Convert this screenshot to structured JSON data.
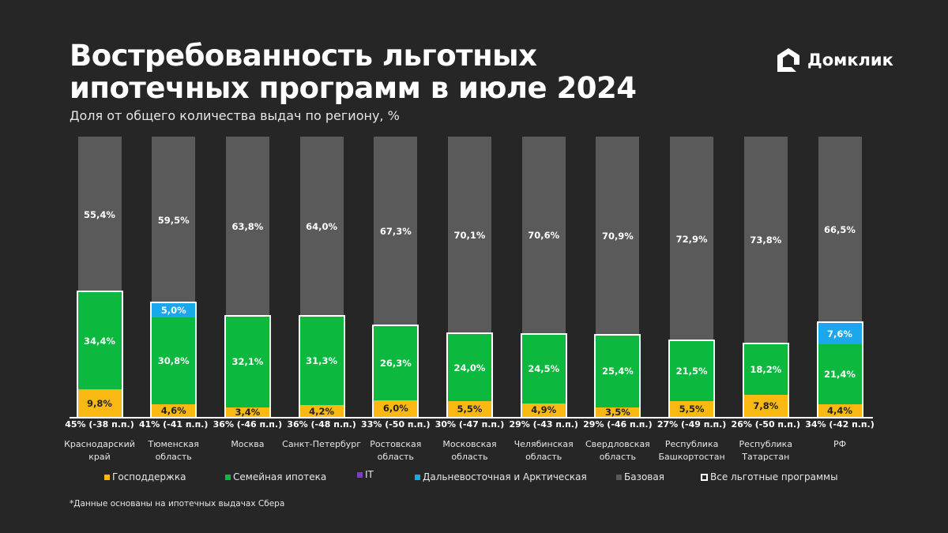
{
  "header": {
    "title_line1": "Востребованность льготных",
    "title_line2": "ипотечных программ в июле 2024",
    "subtitle": "Доля от общего количества выдач по региону, %",
    "logo_text": "Домклик"
  },
  "chart_data": {
    "type": "bar",
    "stacked": true,
    "title": "Востребованность льготных ипотечных программ в июле 2024",
    "ylabel": "Доля от общего количества выдач по региону, %",
    "ylim": [
      0,
      100
    ],
    "grid": false,
    "legend_position": "bottom",
    "categories": [
      "Краснодарский край",
      "Тюменская область",
      "Москва",
      "Санкт-Петербург",
      "Ростовская область",
      "Московская область",
      "Челябинская область",
      "Свердловская область",
      "Республика Башкортостан",
      "Республика Татарстан",
      "РФ"
    ],
    "series": [
      {
        "name": "Господдержка",
        "color": "#f9b912",
        "values": [
          9.8,
          4.6,
          3.4,
          4.2,
          6.0,
          5.5,
          4.9,
          3.5,
          5.5,
          7.8,
          4.4
        ],
        "labels": [
          "9,8%",
          "4,6%",
          "3,4%",
          "4,2%",
          "6,0%",
          "5,5%",
          "4,9%",
          "3,5%",
          "5,5%",
          "7,8%",
          "4,4%"
        ]
      },
      {
        "name": "Семейная ипотека",
        "color": "#0cb83e",
        "values": [
          34.4,
          30.8,
          32.1,
          31.3,
          26.3,
          24.0,
          24.5,
          25.4,
          21.5,
          18.2,
          21.4
        ],
        "labels": [
          "34,4%",
          "30,8%",
          "32,1%",
          "31,3%",
          "26,3%",
          "24,0%",
          "24,5%",
          "25,4%",
          "21,5%",
          "18,2%",
          "21,4%"
        ]
      },
      {
        "name": "IT",
        "color": "#7b3fb8",
        "values": [
          0,
          0,
          0,
          0,
          0,
          0,
          0,
          0,
          0,
          0,
          0
        ],
        "labels": [
          "",
          "",
          "",
          "",
          "",
          "",
          "",
          "",
          "",
          "",
          ""
        ]
      },
      {
        "name": "Дальневосточная и Арктическая",
        "color": "#1aa7ec",
        "values": [
          0,
          5.0,
          0,
          0,
          0,
          0,
          0,
          0,
          0,
          0,
          7.6
        ],
        "labels": [
          "",
          "5,0%",
          "",
          "",
          "",
          "",
          "",
          "",
          "",
          "",
          "7,6%"
        ]
      },
      {
        "name": "Базовая",
        "color": "#5a5a5a",
        "values": [
          55.4,
          59.5,
          63.8,
          64.0,
          67.3,
          70.1,
          70.6,
          70.9,
          72.9,
          73.8,
          66.5
        ],
        "labels": [
          "55,4%",
          "59,5%",
          "63,8%",
          "64,0%",
          "67,3%",
          "70,1%",
          "70,6%",
          "70,9%",
          "72,9%",
          "73,8%",
          "66,5%"
        ]
      }
    ],
    "totals_label": "Все льготные программы",
    "totals": [
      "45% (-38 п.п.)",
      "41% (-41 п.п.)",
      "36% (-46 п.п.)",
      "36% (-48 п.п.)",
      "33% (-50 п.п.)",
      "30% (-47 п.п.)",
      "29% (-43 п.п.)",
      "29% (-46 п.п.)",
      "27% (-49 п.п.)",
      "26% (-50 п.п.)",
      "34% (-42 п.п.)"
    ]
  },
  "footnote": "*Данные основаны на ипотечных выдачах Сбера"
}
